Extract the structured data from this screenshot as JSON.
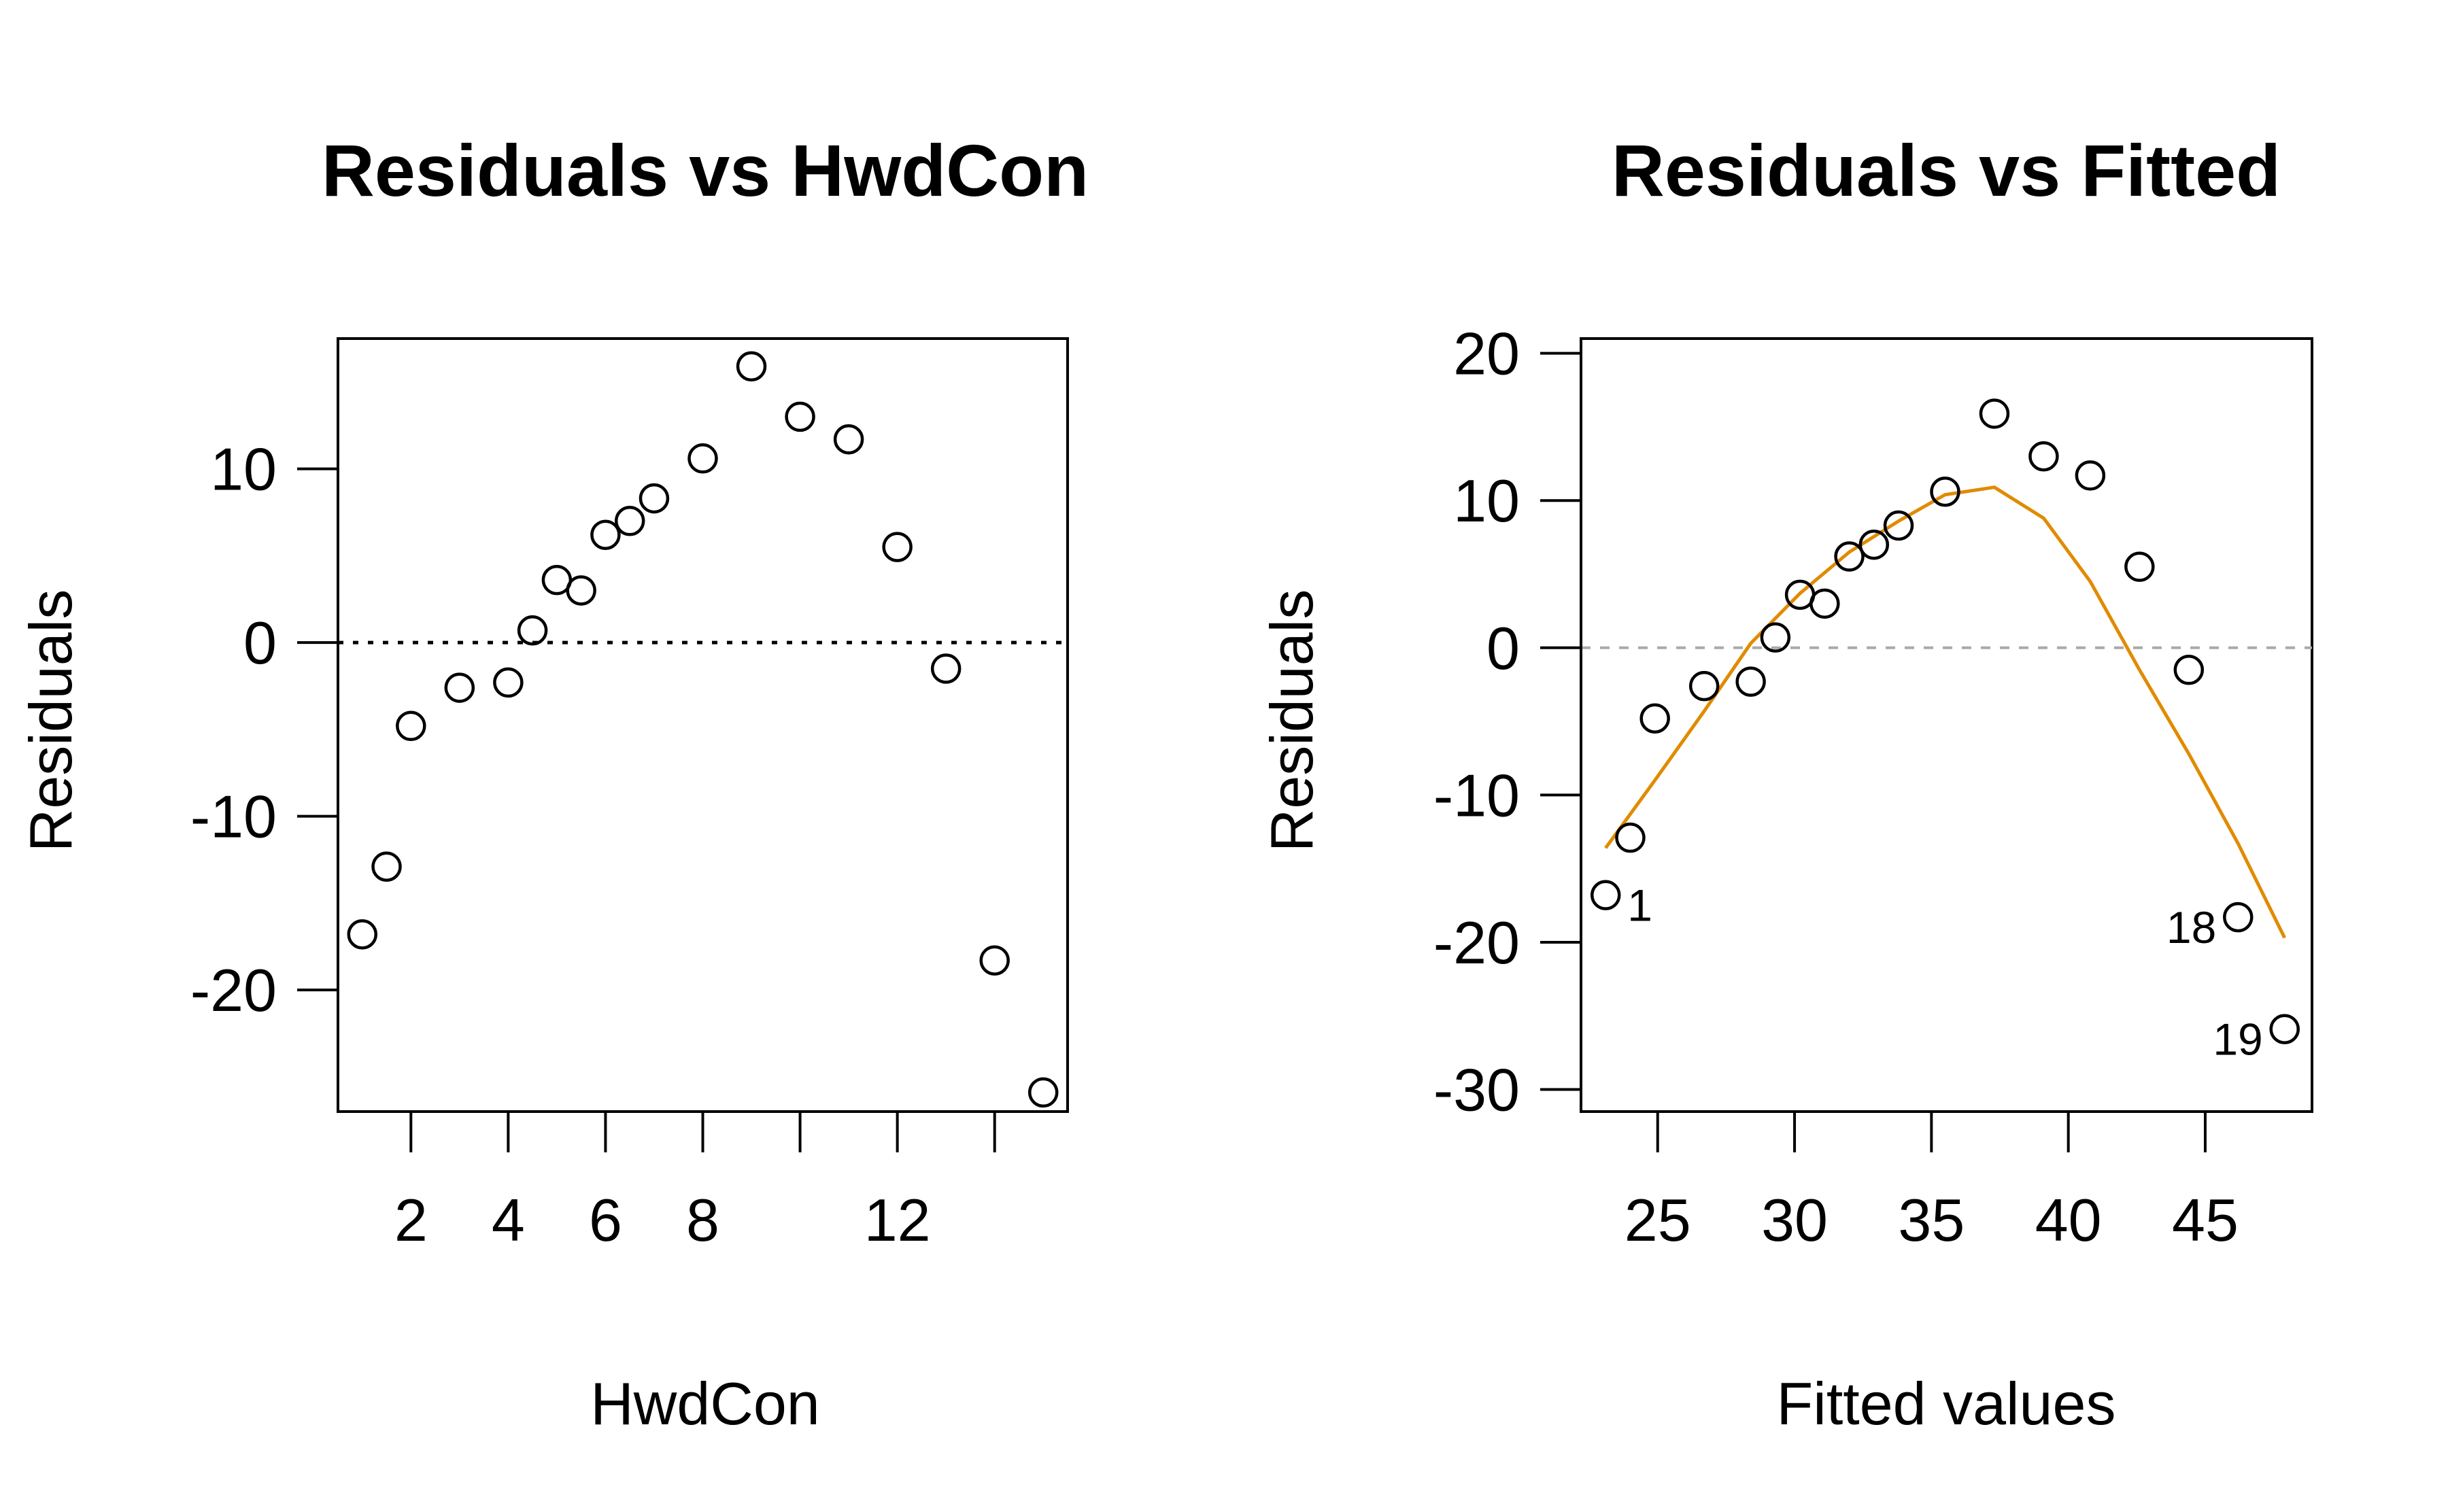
{
  "chart_data": [
    {
      "type": "scatter",
      "title": "Residuals vs HwdCon",
      "xlabel": "HwdCon",
      "ylabel": "Residuals",
      "xlim": [
        0.5,
        15.5
      ],
      "ylim": [
        -27,
        17.5
      ],
      "xticks": [
        2,
        4,
        6,
        8,
        10,
        12,
        14
      ],
      "xtick_labels": [
        "2",
        "4",
        "6",
        "8",
        "",
        "12",
        ""
      ],
      "yticks": [
        -20,
        -10,
        0,
        10
      ],
      "ytick_labels": [
        "-20",
        "-10",
        "0",
        "10"
      ],
      "reference_line": {
        "y": 0,
        "style": "dotted",
        "color": "#000000"
      },
      "series": [
        {
          "x": [
            1,
            1.5,
            2,
            3,
            4,
            4.5,
            5,
            5.5,
            6,
            6.5,
            7,
            8,
            9,
            10,
            11,
            12,
            13,
            14,
            15
          ],
          "y": [
            -16.8,
            -12.9,
            -4.8,
            -2.6,
            -2.3,
            0.7,
            3.6,
            3.0,
            6.2,
            7.0,
            8.3,
            10.6,
            15.9,
            13.0,
            11.7,
            5.5,
            -1.5,
            -18.3,
            -25.9
          ]
        }
      ]
    },
    {
      "type": "scatter",
      "title": "Residuals vs Fitted",
      "xlabel": "Fitted values",
      "ylabel": "Residuals",
      "xlim": [
        22.2,
        48.9
      ],
      "ylim": [
        -31.5,
        21
      ],
      "xticks": [
        25,
        30,
        35,
        40,
        45
      ],
      "xtick_labels": [
        "25",
        "30",
        "35",
        "40",
        "45"
      ],
      "yticks": [
        -30,
        -20,
        -10,
        0,
        10,
        20
      ],
      "ytick_labels": [
        "-30",
        "-20",
        "-10",
        "0",
        "10",
        "20"
      ],
      "reference_line": {
        "y": 0,
        "style": "dashed",
        "color": "#aaaaaa"
      },
      "smooth_line": {
        "color": "#e08b00",
        "x": [
          23.1,
          24.9,
          26.7,
          28.4,
          30.2,
          32.0,
          33.8,
          35.5,
          37.3,
          39.1,
          40.8,
          42.6,
          44.4,
          46.2,
          47.9
        ],
        "y": [
          -13.6,
          -9.0,
          -4.3,
          0.3,
          3.7,
          6.5,
          8.6,
          10.4,
          10.9,
          8.8,
          4.5,
          -1.5,
          -7.2,
          -13.3,
          -19.7
        ]
      },
      "series": [
        {
          "x": [
            23.1,
            24.0,
            24.9,
            26.7,
            28.4,
            29.3,
            30.2,
            31.1,
            32.0,
            32.9,
            33.8,
            35.5,
            37.3,
            39.1,
            40.8,
            42.6,
            44.4,
            46.2,
            47.9
          ],
          "y": [
            -16.8,
            -12.9,
            -4.8,
            -2.6,
            -2.3,
            0.7,
            3.6,
            3.0,
            6.2,
            7.0,
            8.3,
            10.6,
            15.9,
            13.0,
            11.7,
            5.5,
            -1.5,
            -18.3,
            -25.9
          ]
        }
      ],
      "point_labels": [
        {
          "index": 0,
          "text": "1",
          "side": "right"
        },
        {
          "index": 17,
          "text": "18",
          "side": "left"
        },
        {
          "index": 18,
          "text": "19",
          "side": "left"
        }
      ]
    }
  ]
}
